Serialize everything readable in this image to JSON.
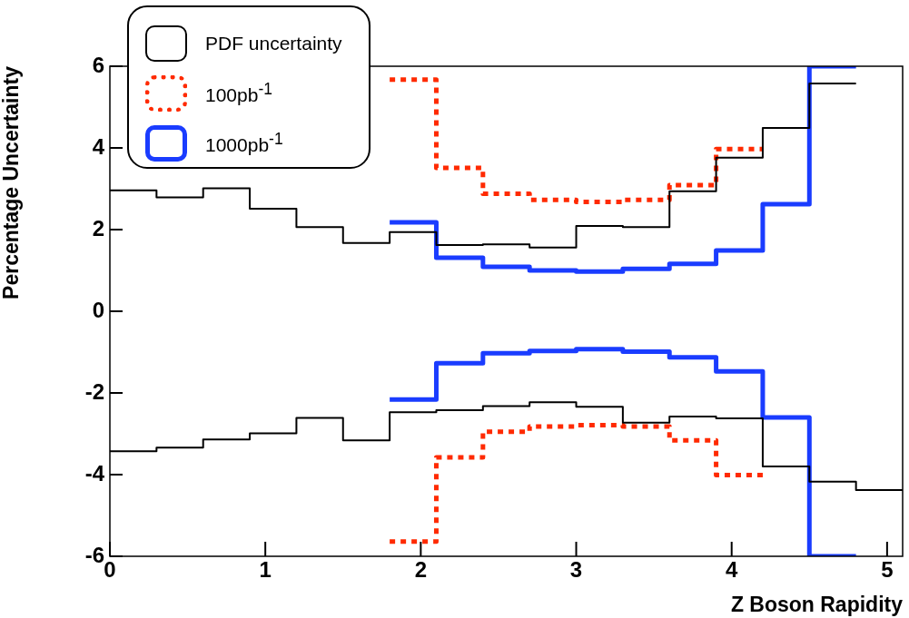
{
  "chart_data": {
    "type": "step",
    "xlabel": "Z Boson Rapidity",
    "ylabel": "Percentage Uncertainty",
    "xlim": [
      0,
      5.1
    ],
    "xticks": [
      0,
      1,
      2,
      3,
      4,
      5
    ],
    "ylim": [
      -6,
      6
    ],
    "yticks": [
      -6,
      -4,
      -2,
      0,
      2,
      4,
      6
    ],
    "grid": false,
    "legend": "top left",
    "marker": "none",
    "series": [
      {
        "name": "PDF uncertainty",
        "color": "#000000",
        "line_style": "solid",
        "x": [
          0,
          0.3,
          0.6,
          0.9,
          1.2,
          1.5,
          1.8,
          2.1,
          2.4,
          2.7,
          3.0,
          3.3,
          3.6,
          3.9,
          4.2,
          4.5,
          4.8
        ],
        "values": [
          2.96,
          2.79,
          3.01,
          2.51,
          2.06,
          1.67,
          1.94,
          1.62,
          1.64,
          1.56,
          2.09,
          2.06,
          2.94,
          3.76,
          4.49,
          5.58,
          5.58
        ]
      },
      {
        "color": "#000000",
        "line_style": "solid",
        "x": [
          0,
          0.3,
          0.6,
          0.9,
          1.2,
          1.5,
          1.8,
          2.1,
          2.4,
          2.7,
          3.0,
          3.3,
          3.6,
          3.9,
          4.2,
          4.5,
          4.8,
          5.1
        ],
        "values": [
          -3.43,
          -3.34,
          -3.14,
          -2.99,
          -2.61,
          -3.16,
          -2.47,
          -2.42,
          -2.32,
          -2.23,
          -2.34,
          -2.73,
          -2.58,
          -2.62,
          -3.8,
          -4.17,
          -4.38,
          -4.38
        ]
      },
      {
        "name": "100pb$^{-1}$",
        "color": "#ff2a00",
        "line_style": "dotted",
        "x": [
          1.8,
          2.1,
          2.4,
          2.7,
          3.0,
          3.3,
          3.6,
          3.9,
          4.2
        ],
        "values": [
          5.67,
          3.51,
          2.88,
          2.73,
          2.68,
          2.73,
          3.09,
          3.97,
          3.97
        ]
      },
      {
        "color": "#ff2a00",
        "line_style": "dotted",
        "x": [
          1.8,
          2.1,
          2.4,
          2.7,
          3.0,
          3.3,
          3.6,
          3.9,
          4.2
        ],
        "values": [
          -5.64,
          -3.58,
          -2.95,
          -2.82,
          -2.79,
          -2.82,
          -3.16,
          -4.01,
          -4.01
        ]
      },
      {
        "name": "1000pb$^{-1}$",
        "color": "#1a3cff",
        "line_style": "solid",
        "x": [
          1.8,
          2.1,
          2.4,
          2.7,
          3.0,
          3.3,
          3.6,
          3.9,
          4.2,
          4.5,
          4.8
        ],
        "values": [
          2.18,
          1.31,
          1.09,
          1.0,
          0.97,
          1.04,
          1.16,
          1.49,
          2.62,
          6,
          6
        ]
      },
      {
        "color": "#1a3cff",
        "line_style": "solid",
        "x": [
          1.8,
          2.1,
          2.4,
          2.7,
          3.0,
          3.3,
          3.6,
          3.9,
          4.2,
          4.5,
          4.8
        ],
        "values": [
          -2.16,
          -1.27,
          -1.03,
          -0.97,
          -0.93,
          -0.99,
          -1.13,
          -1.47,
          -2.6,
          -6,
          -6
        ]
      }
    ]
  }
}
